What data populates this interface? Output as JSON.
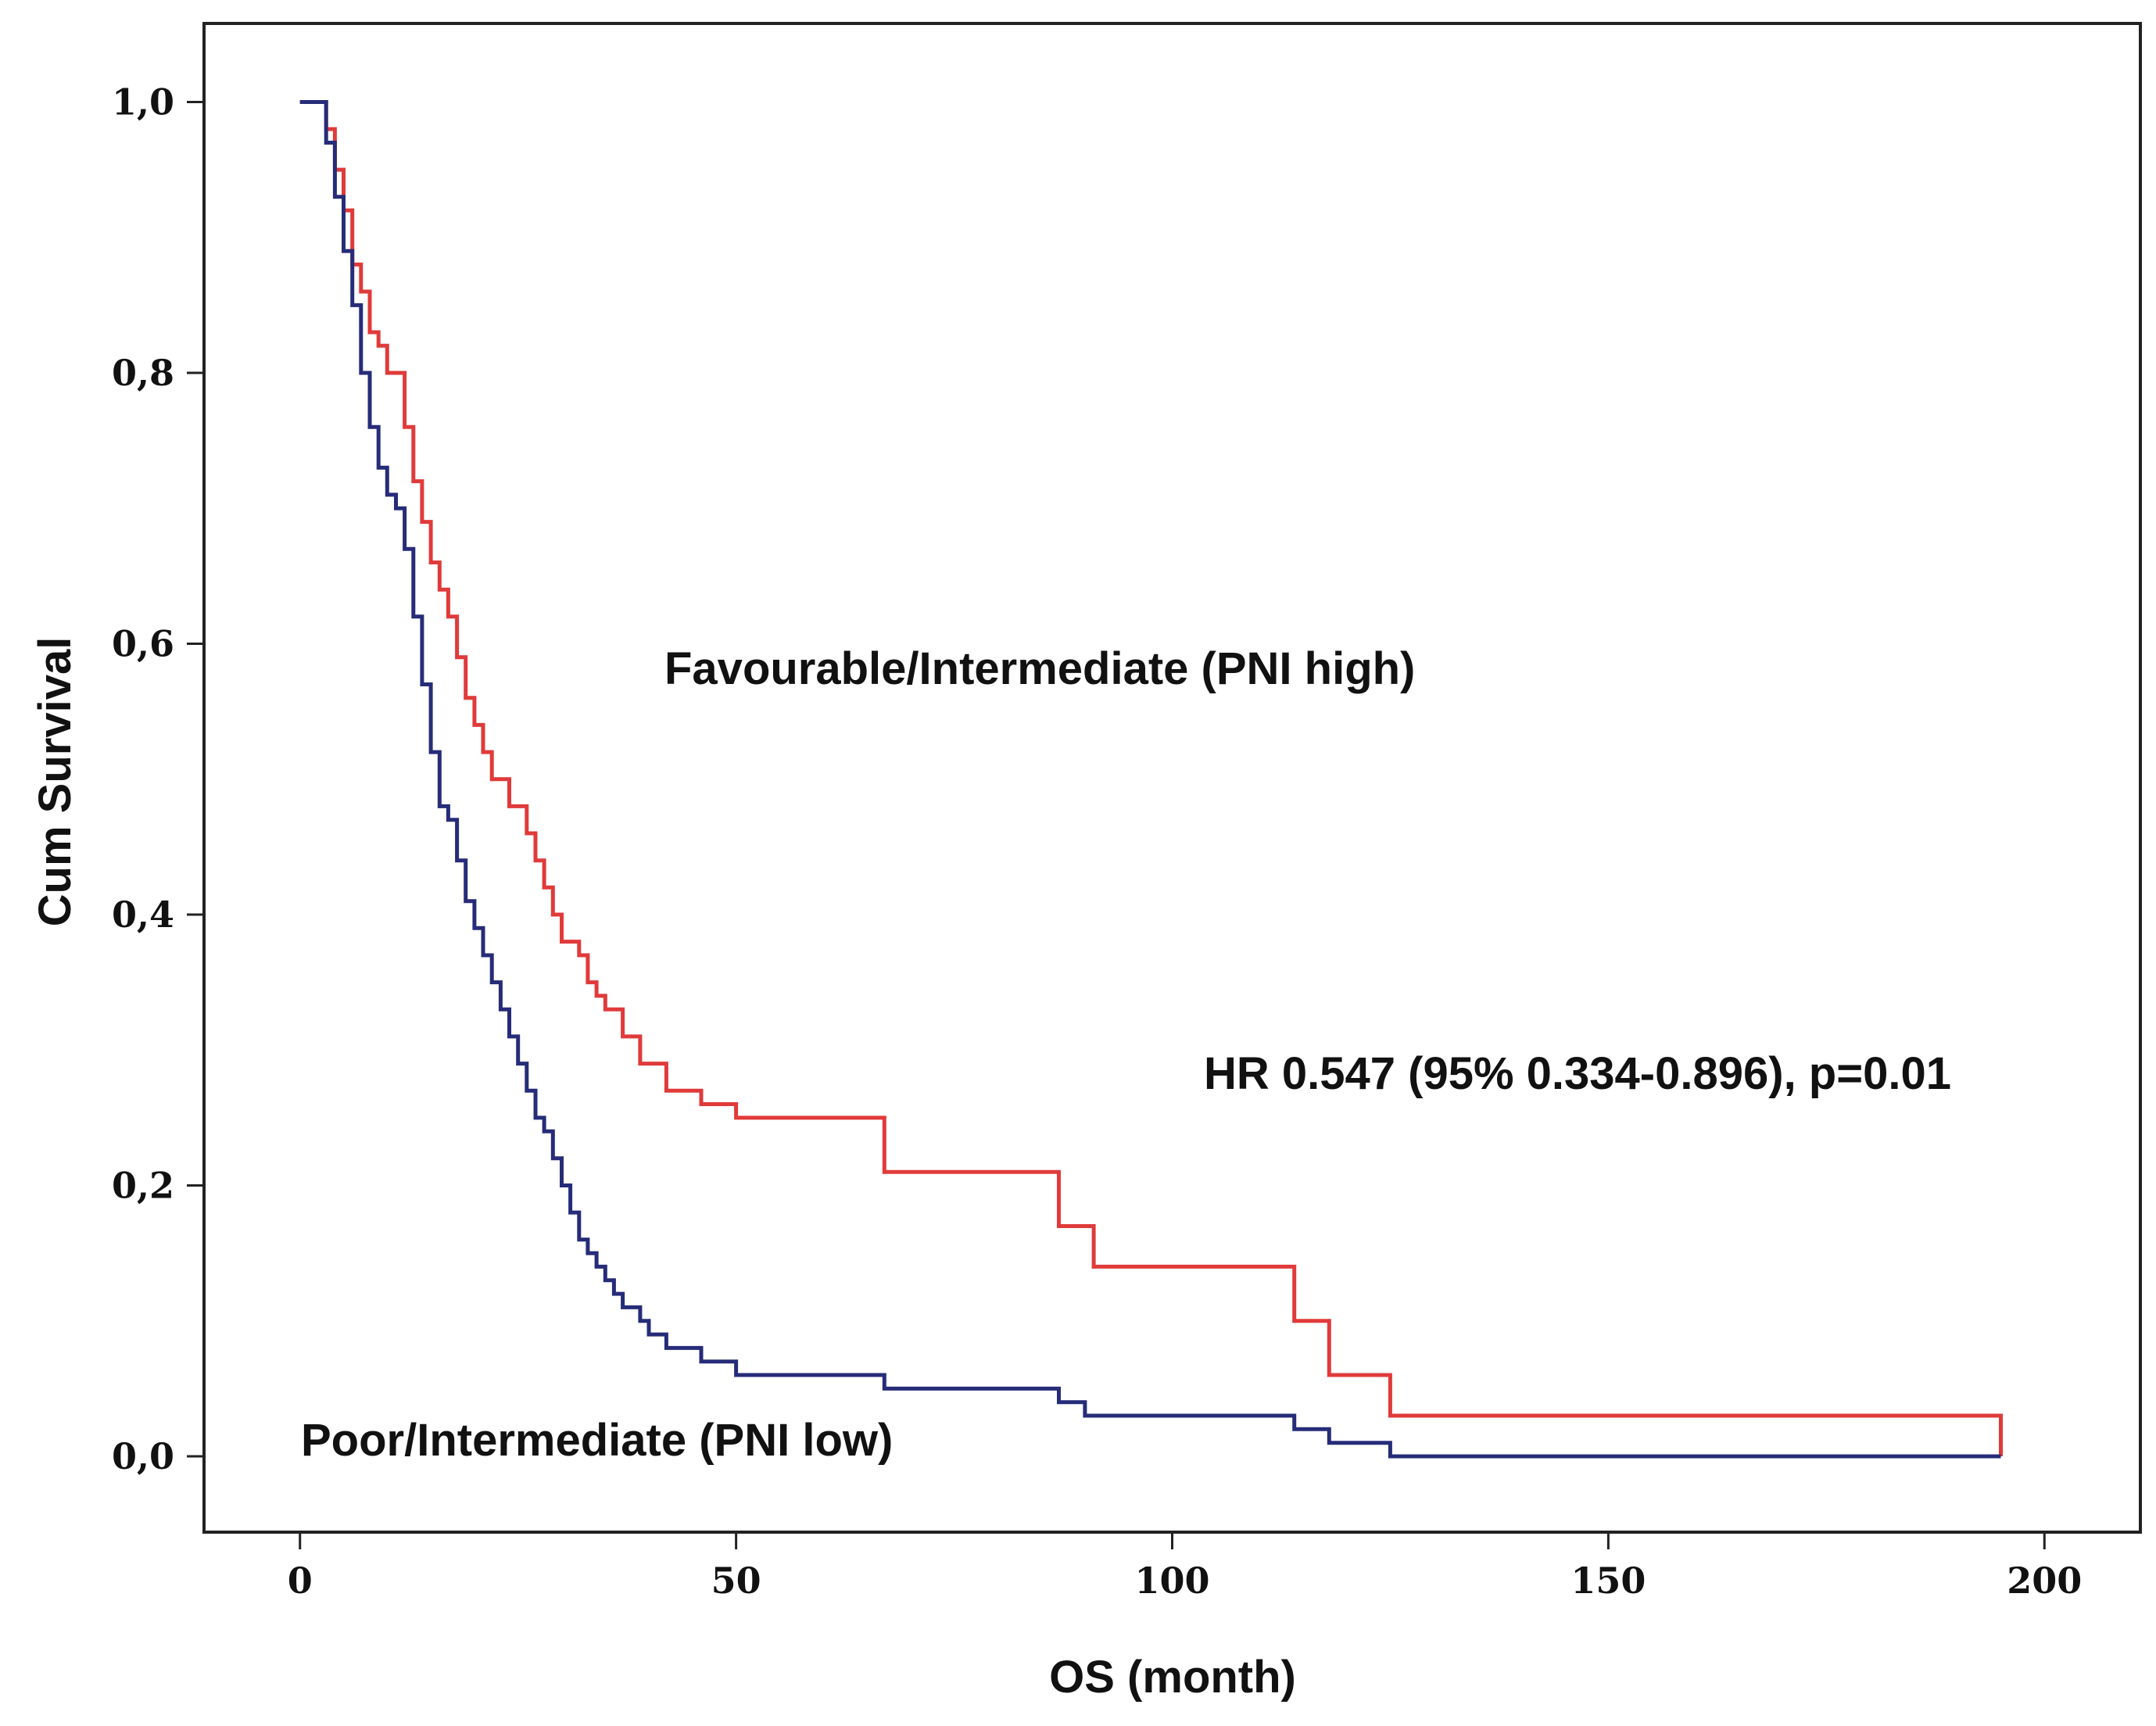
{
  "chart_data": {
    "type": "line",
    "title": "",
    "xlabel": "OS (month)",
    "ylabel": "Cum Survival",
    "xlim": [
      -11,
      211
    ],
    "ylim": [
      -0.056,
      1.058
    ],
    "xticks": [
      0,
      50,
      100,
      150,
      200
    ],
    "xtick_labels": [
      "0",
      "50",
      "100",
      "150",
      "200"
    ],
    "yticks": [
      0,
      0.2,
      0.4,
      0.6,
      0.8,
      1.0
    ],
    "ytick_labels": [
      "0,0",
      "0,2",
      "0,4",
      "0,6",
      "0,8",
      "1,0"
    ],
    "grid": false,
    "colors": {
      "high": "#e03a3a",
      "low": "#262c78",
      "axis": "#222222"
    },
    "series": [
      {
        "name": "Favourable/Intermediate (PNI high)",
        "color": "#e03a3a",
        "x": [
          0,
          3,
          4,
          5,
          6,
          7,
          8,
          9,
          10,
          12,
          13,
          14,
          15,
          16,
          17,
          18,
          19,
          20,
          21,
          22,
          24,
          26,
          27,
          28,
          29,
          30,
          32,
          33,
          34,
          35,
          37,
          39,
          42,
          46,
          50,
          67,
          87,
          91,
          114,
          118,
          125,
          195
        ],
        "y": [
          1.0,
          0.98,
          0.95,
          0.92,
          0.88,
          0.86,
          0.83,
          0.82,
          0.8,
          0.76,
          0.72,
          0.69,
          0.66,
          0.64,
          0.62,
          0.59,
          0.56,
          0.54,
          0.52,
          0.5,
          0.48,
          0.46,
          0.44,
          0.42,
          0.4,
          0.38,
          0.37,
          0.35,
          0.34,
          0.33,
          0.31,
          0.29,
          0.27,
          0.26,
          0.25,
          0.21,
          0.17,
          0.14,
          0.1,
          0.06,
          0.03,
          0.02
        ]
      },
      {
        "name": "Poor/Intermediate (PNI low)",
        "color": "#262c78",
        "x": [
          0,
          3,
          4,
          5,
          6,
          7,
          8,
          9,
          10,
          11,
          12,
          13,
          14,
          15,
          16,
          17,
          18,
          19,
          20,
          21,
          22,
          23,
          24,
          25,
          26,
          27,
          28,
          29,
          30,
          31,
          32,
          33,
          34,
          35,
          36,
          37,
          39,
          40,
          42,
          46,
          50,
          67,
          87,
          90,
          114,
          118,
          125,
          195
        ],
        "y": [
          1.0,
          0.97,
          0.93,
          0.89,
          0.85,
          0.8,
          0.76,
          0.73,
          0.71,
          0.7,
          0.67,
          0.62,
          0.57,
          0.52,
          0.48,
          0.47,
          0.44,
          0.41,
          0.39,
          0.37,
          0.35,
          0.33,
          0.31,
          0.29,
          0.27,
          0.25,
          0.24,
          0.22,
          0.2,
          0.18,
          0.16,
          0.15,
          0.14,
          0.13,
          0.12,
          0.11,
          0.1,
          0.09,
          0.08,
          0.07,
          0.06,
          0.05,
          0.04,
          0.03,
          0.02,
          0.01,
          0.0,
          0.0
        ]
      }
    ],
    "annotations": [
      {
        "id": "label-high",
        "text": "Favourable/Intermediate (PNI high)"
      },
      {
        "id": "hr",
        "text": "HR 0.547 (95% 0.334-0.896), p=0.01"
      },
      {
        "id": "label-low",
        "text": "Poor/Intermediate (PNI low)"
      }
    ]
  }
}
